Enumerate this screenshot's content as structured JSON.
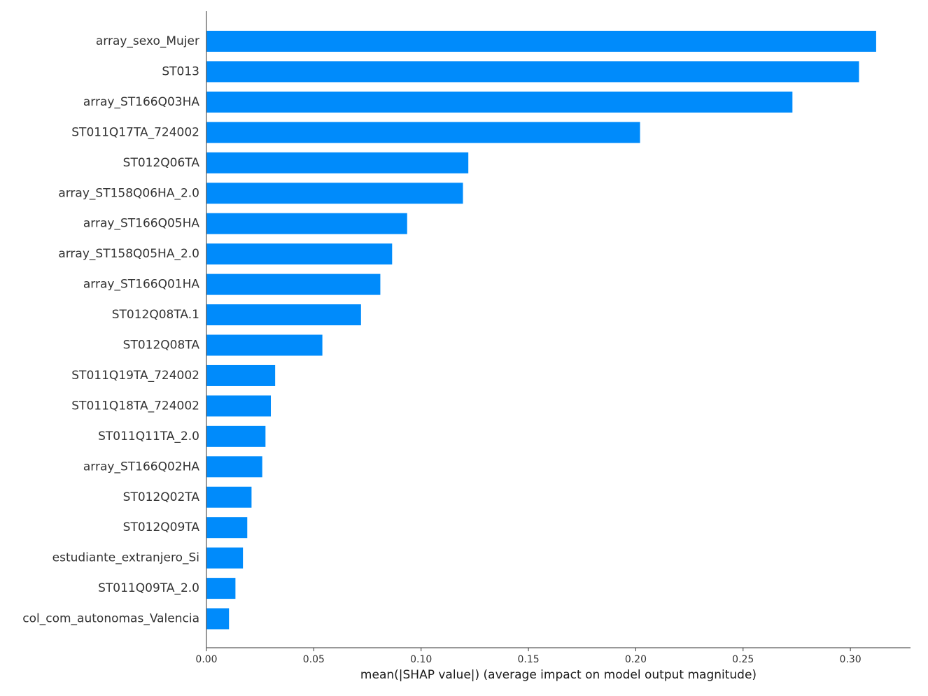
{
  "chart_data": {
    "type": "bar",
    "orientation": "horizontal",
    "title": "",
    "xlabel": "mean(|SHAP value|) (average impact on model output magnitude)",
    "ylabel": "",
    "xlim": [
      0.0,
      0.328
    ],
    "x_ticks": [
      "0.00",
      "0.05",
      "0.10",
      "0.15",
      "0.20",
      "0.25",
      "0.30"
    ],
    "x_tick_values": [
      0.0,
      0.05,
      0.1,
      0.15,
      0.2,
      0.25,
      0.3
    ],
    "grid": false,
    "bar_color": "#008bfb",
    "categories": [
      "array_sexo_Mujer",
      "ST013",
      "array_ST166Q03HA",
      "ST011Q17TA_724002",
      "ST012Q06TA",
      "array_ST158Q06HA_2.0",
      "array_ST166Q05HA",
      "array_ST158Q05HA_2.0",
      "array_ST166Q01HA",
      "ST012Q08TA.1",
      "ST012Q08TA",
      "ST011Q19TA_724002",
      "ST011Q18TA_724002",
      "ST011Q11TA_2.0",
      "array_ST166Q02HA",
      "ST012Q02TA",
      "ST012Q09TA",
      "estudiante_extranjero_Si",
      "ST011Q09TA_2.0",
      "col_com_autonomas_Valencia"
    ],
    "values": [
      0.312,
      0.304,
      0.273,
      0.202,
      0.122,
      0.1195,
      0.0935,
      0.0865,
      0.081,
      0.072,
      0.054,
      0.032,
      0.03,
      0.0275,
      0.026,
      0.021,
      0.019,
      0.017,
      0.0135,
      0.0105
    ]
  }
}
